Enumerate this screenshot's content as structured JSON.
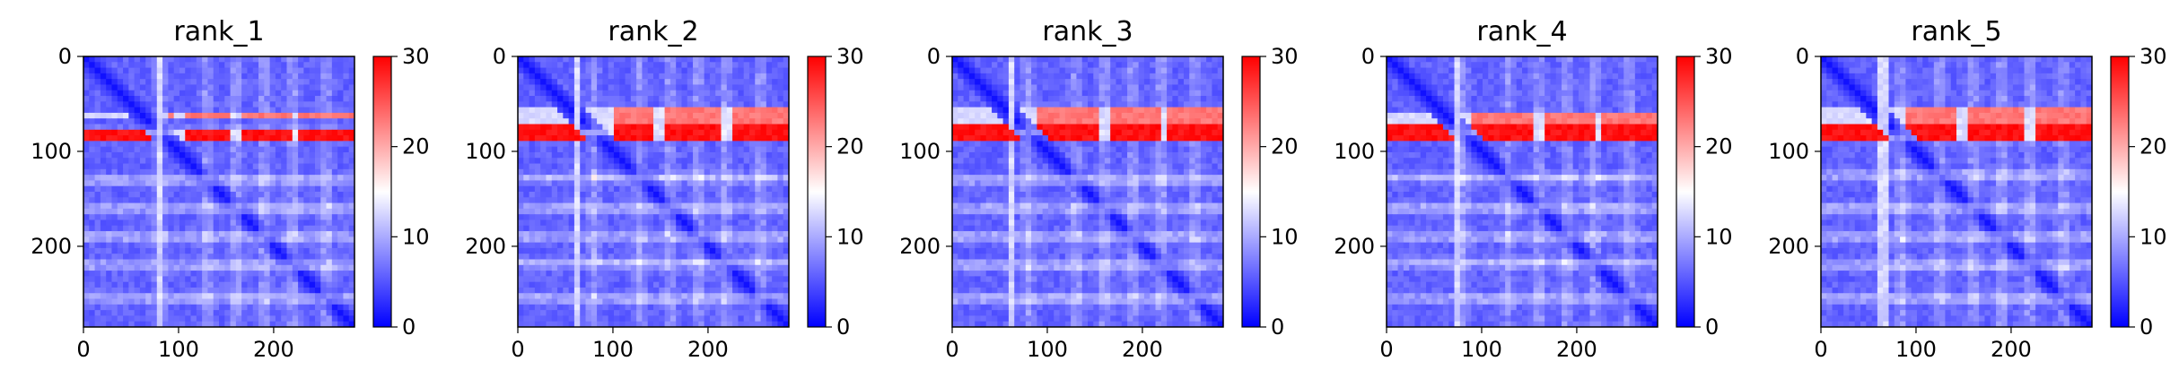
{
  "chart_data": [
    {
      "type": "heatmap",
      "title": "rank_1",
      "xlabel": "",
      "ylabel": "",
      "x_ticks": [
        "0",
        "100",
        "200"
      ],
      "y_ticks": [
        "0",
        "100",
        "200"
      ],
      "xlim": [
        0,
        285
      ],
      "ylim": [
        285,
        0
      ],
      "n_residues": 285,
      "colorbar": {
        "colormap": "bwr",
        "range": [
          0,
          30
        ],
        "ticks": [
          "0",
          "10",
          "20",
          "30"
        ]
      },
      "high_error_rows": [
        [
          57,
          67
        ],
        [
          75,
          88
        ]
      ],
      "light_bands": [
        80,
        130,
        160,
        190,
        220,
        255
      ],
      "pale_columns": [
        [
          76,
          84
        ]
      ],
      "red_breaks": [
        100,
        160,
        222
      ]
    },
    {
      "type": "heatmap",
      "title": "rank_2",
      "xlabel": "",
      "ylabel": "",
      "x_ticks": [
        "0",
        "100",
        "200"
      ],
      "y_ticks": [
        "0",
        "100",
        "200"
      ],
      "xlim": [
        0,
        285
      ],
      "ylim": [
        285,
        0
      ],
      "n_residues": 285,
      "colorbar": {
        "colormap": "bwr",
        "range": [
          0,
          30
        ],
        "ticks": [
          "0",
          "10",
          "20",
          "30"
        ]
      },
      "high_error_rows": [
        [
          55,
          72
        ],
        [
          74,
          88
        ]
      ],
      "light_bands": [
        80,
        128,
        160,
        190,
        218,
        255
      ],
      "pale_columns": [
        [
          58,
          66
        ]
      ],
      "red_breaks": [
        95,
        150,
        220
      ]
    },
    {
      "type": "heatmap",
      "title": "rank_3",
      "xlabel": "",
      "ylabel": "",
      "x_ticks": [
        "0",
        "100",
        "200"
      ],
      "y_ticks": [
        "0",
        "100",
        "200"
      ],
      "xlim": [
        0,
        285
      ],
      "ylim": [
        285,
        0
      ],
      "n_residues": 285,
      "colorbar": {
        "colormap": "bwr",
        "range": [
          0,
          30
        ],
        "ticks": [
          "0",
          "10",
          "20",
          "30"
        ]
      },
      "high_error_rows": [
        [
          55,
          72
        ],
        [
          74,
          88
        ]
      ],
      "light_bands": [
        80,
        130,
        160,
        190,
        220,
        255
      ],
      "pale_columns": [
        [
          58,
          66
        ]
      ],
      "red_breaks": [
        160,
        222
      ]
    },
    {
      "type": "heatmap",
      "title": "rank_4",
      "xlabel": "",
      "ylabel": "",
      "x_ticks": [
        "0",
        "100",
        "200"
      ],
      "y_ticks": [
        "0",
        "100",
        "200"
      ],
      "xlim": [
        0,
        285
      ],
      "ylim": [
        285,
        0
      ],
      "n_residues": 285,
      "colorbar": {
        "colormap": "bwr",
        "range": [
          0,
          30
        ],
        "ticks": [
          "0",
          "10",
          "20",
          "30"
        ]
      },
      "high_error_rows": [
        [
          57,
          70
        ],
        [
          74,
          88
        ]
      ],
      "light_bands": [
        80,
        128,
        160,
        190,
        218,
        255
      ],
      "pale_columns": [
        [
          72,
          80
        ]
      ],
      "red_breaks": [
        160,
        222
      ]
    },
    {
      "type": "heatmap",
      "title": "rank_5",
      "xlabel": "",
      "ylabel": "",
      "x_ticks": [
        "0",
        "100",
        "200"
      ],
      "y_ticks": [
        "0",
        "100",
        "200"
      ],
      "xlim": [
        0,
        285
      ],
      "ylim": [
        285,
        0
      ],
      "n_residues": 285,
      "colorbar": {
        "colormap": "bwr",
        "range": [
          0,
          30
        ],
        "ticks": [
          "0",
          "10",
          "20",
          "30"
        ]
      },
      "high_error_rows": [
        [
          52,
          70
        ],
        [
          74,
          88
        ]
      ],
      "light_bands": [
        85,
        125,
        160,
        190,
        220,
        255
      ],
      "pale_columns": [
        [
          62,
          72
        ]
      ],
      "red_breaks": [
        148,
        220
      ]
    }
  ]
}
